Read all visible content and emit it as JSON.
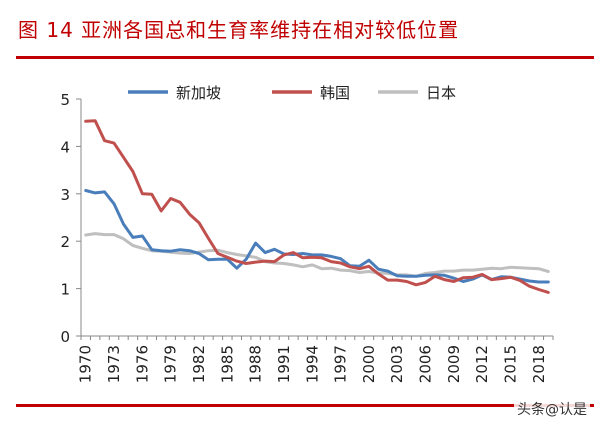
{
  "title": "图 14  亚洲各国总和生育率维持在相对较低位置",
  "watermark": "头条@认是",
  "chart_data": {
    "type": "line",
    "title": "图 14  亚洲各国总和生育率维持在相对较低位置",
    "xlabel": "",
    "ylabel": "",
    "ylim": [
      0,
      5
    ],
    "yticks": [
      0,
      1,
      2,
      3,
      4,
      5
    ],
    "xticks": [
      1970,
      1973,
      1976,
      1979,
      1982,
      1985,
      1988,
      1991,
      1994,
      1997,
      2000,
      2003,
      2006,
      2009,
      2012,
      2015,
      2018
    ],
    "x": [
      1970,
      1971,
      1972,
      1973,
      1974,
      1975,
      1976,
      1977,
      1978,
      1979,
      1980,
      1981,
      1982,
      1983,
      1984,
      1985,
      1986,
      1987,
      1988,
      1989,
      1990,
      1991,
      1992,
      1993,
      1994,
      1995,
      1996,
      1997,
      1998,
      1999,
      2000,
      2001,
      2002,
      2003,
      2004,
      2005,
      2006,
      2007,
      2008,
      2009,
      2010,
      2011,
      2012,
      2013,
      2014,
      2015,
      2016,
      2017,
      2018,
      2019
    ],
    "grid": false,
    "legend_position": "top",
    "series": [
      {
        "name": "新加坡",
        "color": "#4a7ebb",
        "values": [
          3.07,
          3.02,
          3.04,
          2.79,
          2.36,
          2.08,
          2.11,
          1.82,
          1.8,
          1.79,
          1.82,
          1.8,
          1.74,
          1.61,
          1.62,
          1.62,
          1.43,
          1.62,
          1.96,
          1.76,
          1.83,
          1.73,
          1.72,
          1.74,
          1.71,
          1.71,
          1.68,
          1.63,
          1.48,
          1.47,
          1.6,
          1.41,
          1.37,
          1.27,
          1.26,
          1.26,
          1.28,
          1.29,
          1.28,
          1.22,
          1.15,
          1.2,
          1.29,
          1.19,
          1.25,
          1.24,
          1.2,
          1.16,
          1.14,
          1.14
        ]
      },
      {
        "name": "韩国",
        "color": "#c0504d",
        "values": [
          4.53,
          4.54,
          4.12,
          4.07,
          3.77,
          3.47,
          3.0,
          2.99,
          2.64,
          2.9,
          2.82,
          2.57,
          2.39,
          2.06,
          1.74,
          1.66,
          1.58,
          1.53,
          1.56,
          1.58,
          1.57,
          1.71,
          1.76,
          1.65,
          1.66,
          1.65,
          1.57,
          1.54,
          1.46,
          1.42,
          1.47,
          1.31,
          1.18,
          1.18,
          1.15,
          1.08,
          1.13,
          1.26,
          1.19,
          1.15,
          1.23,
          1.24,
          1.3,
          1.19,
          1.21,
          1.24,
          1.17,
          1.05,
          0.98,
          0.92
        ]
      },
      {
        "name": "日本",
        "color": "#bfbfbf",
        "values": [
          2.13,
          2.16,
          2.14,
          2.14,
          2.05,
          1.91,
          1.85,
          1.8,
          1.79,
          1.77,
          1.75,
          1.74,
          1.77,
          1.8,
          1.81,
          1.76,
          1.72,
          1.69,
          1.66,
          1.57,
          1.54,
          1.53,
          1.5,
          1.46,
          1.5,
          1.42,
          1.43,
          1.39,
          1.38,
          1.34,
          1.36,
          1.33,
          1.32,
          1.29,
          1.29,
          1.26,
          1.32,
          1.34,
          1.37,
          1.37,
          1.39,
          1.39,
          1.41,
          1.43,
          1.42,
          1.45,
          1.44,
          1.43,
          1.42,
          1.36
        ]
      }
    ]
  }
}
